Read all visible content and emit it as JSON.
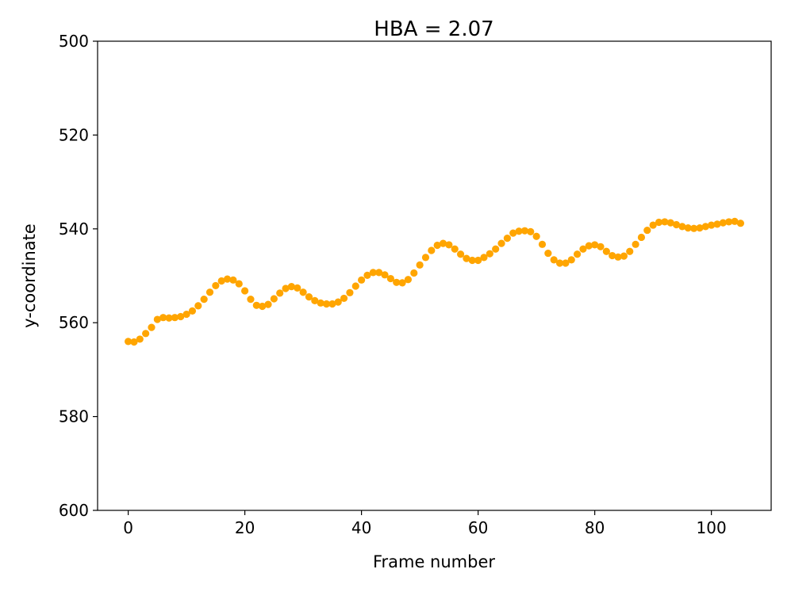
{
  "chart_data": {
    "type": "scatter",
    "title": "HBA = 2.07",
    "xlabel": "Frame number",
    "ylabel": "y-coordinate",
    "xlim": [
      -5.25,
      110.25
    ],
    "ylim": [
      600,
      500
    ],
    "y_inverted": true,
    "x_ticks": [
      "0",
      "20",
      "40",
      "60",
      "80",
      "100"
    ],
    "y_ticks": [
      "500",
      "520",
      "540",
      "560",
      "580",
      "600"
    ],
    "grid": false,
    "marker_color": "#FFA500",
    "series": [
      {
        "x": [
          0,
          1,
          2,
          3,
          4,
          5,
          6,
          7,
          8,
          9,
          10,
          11,
          12,
          13,
          14,
          15,
          16,
          17,
          18,
          19,
          20,
          21,
          22,
          23,
          24,
          25,
          26,
          27,
          28,
          29,
          30,
          31,
          32,
          33,
          34,
          35,
          36,
          37,
          38,
          39,
          40,
          41,
          42,
          43,
          44,
          45,
          46,
          47,
          48,
          49,
          50,
          51,
          52,
          53,
          54,
          55,
          56,
          57,
          58,
          59,
          60,
          61,
          62,
          63,
          64,
          65,
          66,
          67,
          68,
          69,
          70,
          71,
          72,
          73,
          74,
          75,
          76,
          77,
          78,
          79,
          80,
          81,
          82,
          83,
          84,
          85,
          86,
          87,
          88,
          89,
          90,
          91,
          92,
          93,
          94,
          95,
          96,
          97,
          98,
          99,
          100,
          101,
          102,
          103,
          104,
          105
        ],
        "values": [
          564.0,
          564.1,
          563.5,
          562.3,
          561.0,
          559.3,
          558.9,
          559.0,
          558.9,
          558.7,
          558.2,
          557.5,
          556.4,
          555.0,
          553.5,
          552.1,
          551.1,
          550.7,
          550.9,
          551.7,
          553.2,
          555.0,
          556.3,
          556.5,
          556.1,
          554.9,
          553.7,
          552.7,
          552.3,
          552.6,
          553.5,
          554.5,
          555.3,
          555.8,
          556.0,
          556.0,
          555.6,
          554.8,
          553.6,
          552.2,
          550.9,
          549.9,
          549.3,
          549.3,
          549.8,
          550.6,
          551.4,
          551.5,
          550.8,
          549.4,
          547.7,
          546.1,
          544.6,
          543.5,
          543.1,
          543.4,
          544.3,
          545.4,
          546.3,
          546.7,
          546.7,
          546.1,
          545.3,
          544.3,
          543.1,
          542.0,
          540.9,
          540.5,
          540.4,
          540.6,
          541.6,
          543.3,
          545.2,
          546.6,
          547.3,
          547.3,
          546.6,
          545.4,
          544.3,
          543.6,
          543.4,
          543.8,
          544.8,
          545.7,
          546.0,
          545.8,
          544.8,
          543.3,
          541.8,
          540.3,
          539.2,
          538.6,
          538.5,
          538.7,
          539.1,
          539.5,
          539.8,
          539.9,
          539.8,
          539.5,
          539.2,
          539.0,
          538.7,
          538.5,
          538.4,
          538.8
        ]
      }
    ]
  }
}
